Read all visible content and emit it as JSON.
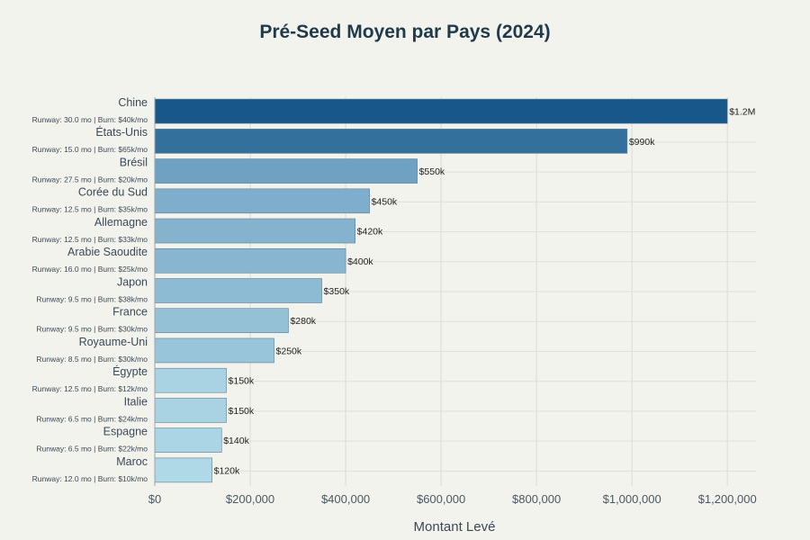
{
  "chart_data": {
    "type": "bar",
    "orientation": "horizontal",
    "title": "Pré-Seed Moyen par Pays (2024)",
    "xlabel": "Montant Levé",
    "ylabel": "",
    "xlim": [
      0,
      1260000
    ],
    "xticks": [
      0,
      200000,
      400000,
      600000,
      800000,
      1000000,
      1200000
    ],
    "xtick_labels": [
      "$0",
      "$200,000",
      "$400,000",
      "$600,000",
      "$800,000",
      "$1,000,000",
      "$1,200,000"
    ],
    "categories": [
      "Chine",
      "États-Unis",
      "Brésil",
      "Corée du Sud",
      "Allemagne",
      "Arabie Saoudite",
      "Japon",
      "France",
      "Royaume-Uni",
      "Égypte",
      "Italie",
      "Espagne",
      "Maroc"
    ],
    "subtitles": [
      "Runway: 30.0 mo | Burn: $40k/mo",
      "Runway: 15.0 mo | Burn: $65k/mo",
      "Runway: 27.5 mo | Burn: $20k/mo",
      "Runway: 12.5 mo | Burn: $35k/mo",
      "Runway: 12.5 mo | Burn: $33k/mo",
      "Runway: 16.0 mo | Burn: $25k/mo",
      "Runway: 9.5 mo | Burn: $38k/mo",
      "Runway: 9.5 mo | Burn: $30k/mo",
      "Runway: 8.5 mo | Burn: $30k/mo",
      "Runway: 12.5 mo | Burn: $12k/mo",
      "Runway: 6.5 mo | Burn: $24k/mo",
      "Runway: 6.5 mo | Burn: $22k/mo",
      "Runway: 12.0 mo | Burn: $10k/mo"
    ],
    "values": [
      1200000,
      990000,
      550000,
      450000,
      420000,
      400000,
      350000,
      280000,
      250000,
      150000,
      150000,
      140000,
      120000
    ],
    "value_labels": [
      "$1.2M",
      "$990k",
      "$550k",
      "$450k",
      "$420k",
      "$400k",
      "$350k",
      "$280k",
      "$250k",
      "$150k",
      "$150k",
      "$140k",
      "$120k"
    ],
    "colors": [
      "#17578a",
      "#33719c",
      "#6fa1c2",
      "#7eaecb",
      "#85b3ce",
      "#88b5d0",
      "#8dbbd3",
      "#95c1d7",
      "#99c5da",
      "#a9d3e3",
      "#a9d3e3",
      "#abd5e4",
      "#b0d9e7"
    ],
    "grid": true,
    "legend": "none"
  }
}
